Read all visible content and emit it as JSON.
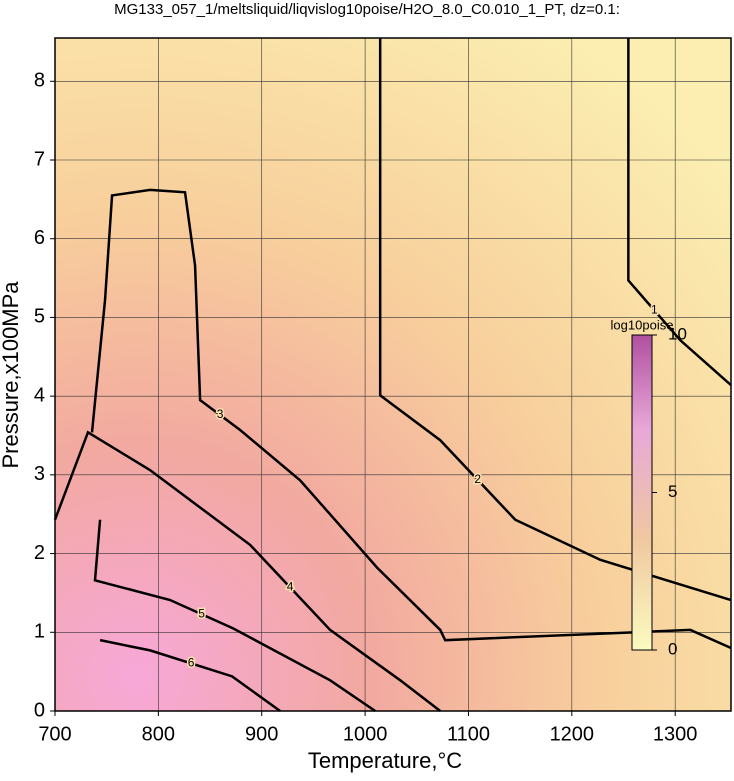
{
  "chart_data": {
    "type": "contour",
    "title": "MG133_057_1/meltsliquid/liqvislog10poise/H2O_8.0_C0.010_1_PT, dz=0.1:",
    "x_label": "Temperature,°C",
    "y_label": "Pressure,x100MPa",
    "xlim": [
      700,
      1354
    ],
    "ylim": [
      0,
      8.55
    ],
    "xticks": [
      700,
      800,
      900,
      1000,
      1100,
      1200,
      1300
    ],
    "yticks": [
      0,
      1,
      2,
      3,
      4,
      5,
      6,
      7,
      8
    ],
    "grid": true,
    "color": "#000000",
    "contours": [
      {
        "level": 1,
        "x": [
          1254.7,
          1254.7,
          1305,
          1354
        ],
        "y": [
          8.55,
          5.47,
          4.71,
          4.14
        ]
      },
      {
        "level": 2,
        "x": [
          1014.6,
          1014.6,
          1072.7,
          1145.3,
          1227.6,
          1354
        ],
        "y": [
          8.55,
          4.01,
          3.44,
          2.43,
          1.92,
          1.41
        ]
      },
      {
        "level": 3,
        "x": [
          735.8,
          748.4,
          755.2,
          792,
          825.8,
          835.5,
          840.4,
          879.1,
          937.2,
          1011.7,
          1072.7,
          1077.5,
          1314.7,
          1354
        ],
        "y": [
          3.54,
          5.22,
          6.55,
          6.62,
          6.59,
          5.66,
          3.95,
          3.57,
          2.93,
          1.82,
          1.03,
          0.9,
          1.03,
          0.8
        ]
      },
      {
        "level": 4,
        "x": [
          700,
          731.9,
          792,
          888.8,
          966.2,
          1034,
          1072.7
        ],
        "y": [
          2.43,
          3.54,
          3.06,
          2.11,
          1.03,
          0.39,
          0
        ]
      },
      {
        "level": 5,
        "x": [
          743.6,
          738.7,
          811.3,
          872.3,
          966.2,
          1009.8
        ],
        "y": [
          2.43,
          1.66,
          1.41,
          1.05,
          0.39,
          0
        ]
      },
      {
        "level": 6,
        "x": [
          743.6,
          792,
          871.3,
          917.8
        ],
        "y": [
          0.9,
          0.77,
          0.44,
          0
        ]
      }
    ],
    "colorbar": {
      "label": "log10poise",
      "lim": [
        0,
        10
      ],
      "ticks": [
        0,
        5,
        10
      ]
    }
  }
}
